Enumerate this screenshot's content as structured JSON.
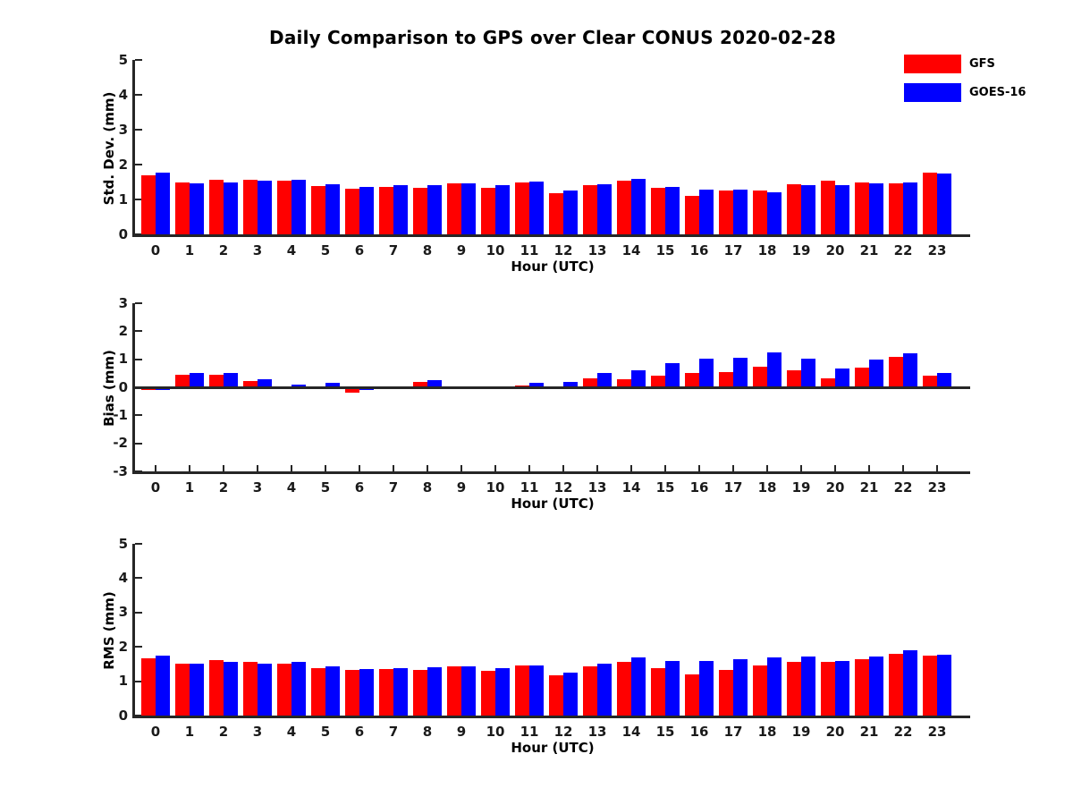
{
  "title": "Daily Comparison to GPS over Clear CONUS 2020-02-28",
  "colors": {
    "gfs_red": "#ff0000",
    "goes_blue": "#0000ff",
    "axis": "#262626",
    "text": "#000000",
    "background": "#ffffff"
  },
  "legend": {
    "position": "top-right",
    "items": [
      {
        "label": "GFS",
        "color": "#ff0000"
      },
      {
        "label": "GOES-16",
        "color": "#0000ff"
      }
    ]
  },
  "chart_data": [
    {
      "type": "bar",
      "panel": "top",
      "title": "",
      "xlabel": "Hour (UTC)",
      "ylabel": "Std. Dev. (mm)",
      "ylim": [
        0,
        5
      ],
      "yticks": [
        0,
        1,
        2,
        3,
        4,
        5
      ],
      "grid": false,
      "zero_line": false,
      "categories": [
        "0",
        "1",
        "2",
        "3",
        "4",
        "5",
        "6",
        "7",
        "8",
        "9",
        "10",
        "11",
        "12",
        "13",
        "14",
        "15",
        "16",
        "17",
        "18",
        "19",
        "20",
        "21",
        "22",
        "23"
      ],
      "series": [
        {
          "name": "GFS",
          "color": "#ff0000",
          "values": [
            1.7,
            1.5,
            1.57,
            1.56,
            1.54,
            1.39,
            1.32,
            1.37,
            1.34,
            1.46,
            1.33,
            1.48,
            1.18,
            1.41,
            1.55,
            1.34,
            1.11,
            1.25,
            1.25,
            1.43,
            1.53,
            1.48,
            1.45,
            1.76
          ]
        },
        {
          "name": "GOES-16",
          "color": "#0000ff",
          "values": [
            1.76,
            1.47,
            1.5,
            1.53,
            1.57,
            1.44,
            1.37,
            1.4,
            1.4,
            1.46,
            1.42,
            1.51,
            1.26,
            1.44,
            1.6,
            1.37,
            1.29,
            1.27,
            1.21,
            1.41,
            1.42,
            1.45,
            1.5,
            1.75
          ]
        }
      ]
    },
    {
      "type": "bar",
      "panel": "middle",
      "title": "",
      "xlabel": "Hour (UTC)",
      "ylabel": "Bias (mm)",
      "ylim": [
        -3,
        3
      ],
      "yticks": [
        -3,
        -2,
        -1,
        0,
        1,
        2,
        3
      ],
      "grid": false,
      "zero_line": true,
      "categories": [
        "0",
        "1",
        "2",
        "3",
        "4",
        "5",
        "6",
        "7",
        "8",
        "9",
        "10",
        "11",
        "12",
        "13",
        "14",
        "15",
        "16",
        "17",
        "18",
        "19",
        "20",
        "21",
        "22",
        "23"
      ],
      "series": [
        {
          "name": "GFS",
          "color": "#ff0000",
          "values": [
            -0.1,
            0.45,
            0.45,
            0.21,
            0.02,
            -0.03,
            -0.19,
            -0.03,
            0.18,
            -0.06,
            -0.04,
            0.07,
            0.03,
            0.32,
            0.28,
            0.42,
            0.5,
            0.55,
            0.75,
            0.62,
            0.32,
            0.7,
            1.08,
            0.41
          ]
        },
        {
          "name": "GOES-16",
          "color": "#0000ff",
          "values": [
            -0.08,
            0.52,
            0.52,
            0.28,
            0.09,
            0.17,
            -0.09,
            -0.04,
            0.27,
            -0.03,
            -0.02,
            0.15,
            0.18,
            0.52,
            0.62,
            0.87,
            1.02,
            1.05,
            1.24,
            1.01,
            0.68,
            1.0,
            1.2,
            0.52
          ]
        }
      ]
    },
    {
      "type": "bar",
      "panel": "bottom",
      "title": "",
      "xlabel": "Hour (UTC)",
      "ylabel": "RMS (mm)",
      "ylim": [
        0,
        5
      ],
      "yticks": [
        0,
        1,
        2,
        3,
        4,
        5
      ],
      "grid": false,
      "zero_line": false,
      "categories": [
        "0",
        "1",
        "2",
        "3",
        "4",
        "5",
        "6",
        "7",
        "8",
        "9",
        "10",
        "11",
        "12",
        "13",
        "14",
        "15",
        "16",
        "17",
        "18",
        "19",
        "20",
        "21",
        "22",
        "23"
      ],
      "series": [
        {
          "name": "GFS",
          "color": "#ff0000",
          "values": [
            1.67,
            1.52,
            1.61,
            1.55,
            1.52,
            1.38,
            1.32,
            1.35,
            1.34,
            1.43,
            1.31,
            1.45,
            1.17,
            1.43,
            1.57,
            1.37,
            1.2,
            1.34,
            1.45,
            1.55,
            1.56,
            1.63,
            1.8,
            1.74
          ]
        },
        {
          "name": "GOES-16",
          "color": "#0000ff",
          "values": [
            1.74,
            1.52,
            1.55,
            1.52,
            1.57,
            1.43,
            1.35,
            1.37,
            1.41,
            1.43,
            1.37,
            1.47,
            1.24,
            1.5,
            1.7,
            1.59,
            1.6,
            1.63,
            1.7,
            1.73,
            1.58,
            1.71,
            1.89,
            1.77
          ]
        }
      ]
    }
  ]
}
